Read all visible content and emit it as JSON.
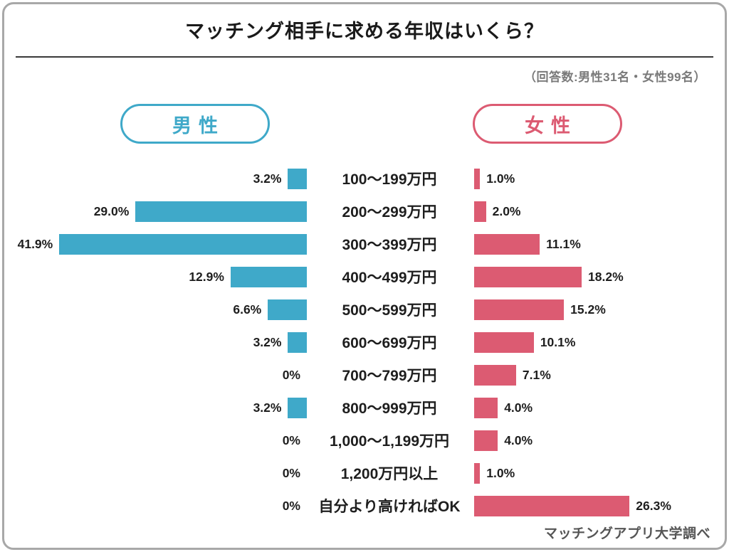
{
  "title": "マッチング相手に求める年収はいくら？",
  "subtitle": "（回答数:男性31名・女性99名）",
  "footer": "マッチングアプリ大学調べ",
  "colors": {
    "men": "#3FA9C9",
    "women": "#DC5B72",
    "text": "#1e1e1e",
    "frame_border": "#a8a8a8"
  },
  "legend": {
    "men_label": "男性",
    "women_label": "女性"
  },
  "chart_data": {
    "type": "bar",
    "orientation": "horizontal-butterfly",
    "title": "マッチング相手に求める年収はいくら？",
    "categories": [
      "100〜199万円",
      "200〜299万円",
      "300〜399万円",
      "400〜499万円",
      "500〜599万円",
      "600〜699万円",
      "700〜799万円",
      "800〜999万円",
      "1,000〜1,199万円",
      "1,200万円以上",
      "自分より高ければOK"
    ],
    "series": [
      {
        "name": "男性",
        "side": "left",
        "values": [
          3.2,
          29.0,
          41.9,
          12.9,
          6.6,
          3.2,
          0,
          3.2,
          0,
          0,
          0
        ],
        "labels": [
          "3.2%",
          "29.0%",
          "41.9%",
          "12.9%",
          "6.6%",
          "3.2%",
          "0%",
          "3.2%",
          "0%",
          "0%",
          "0%"
        ]
      },
      {
        "name": "女性",
        "side": "right",
        "values": [
          1.0,
          2.0,
          11.1,
          18.2,
          15.2,
          10.1,
          7.1,
          4.0,
          4.0,
          1.0,
          26.3
        ],
        "labels": [
          "1.0%",
          "2.0%",
          "11.1%",
          "18.2%",
          "15.2%",
          "10.1%",
          "7.1%",
          "4.0%",
          "4.0%",
          "1.0%",
          "26.3%"
        ]
      }
    ],
    "xlim": [
      0,
      42
    ],
    "grid": false,
    "legend_position": "top"
  }
}
